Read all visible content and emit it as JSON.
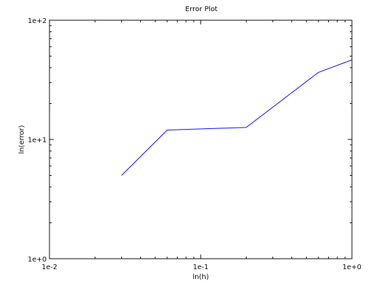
{
  "chart_data": {
    "type": "line",
    "title": "Error Plot",
    "xlabel": "ln(h)",
    "ylabel": "ln(error)",
    "x_scale": "log",
    "y_scale": "log",
    "xlim": [
      0.01,
      1
    ],
    "ylim": [
      1,
      100
    ],
    "x_ticks": [
      {
        "value": 0.01,
        "label": "1e-2"
      },
      {
        "value": 0.1,
        "label": "1e-1"
      },
      {
        "value": 1,
        "label": "1e+0"
      }
    ],
    "y_ticks": [
      {
        "value": 1,
        "label": "1e+0"
      },
      {
        "value": 10,
        "label": "1e+1"
      },
      {
        "value": 100,
        "label": "1e+2"
      }
    ],
    "grid": false,
    "series": [
      {
        "color": "#0000ff",
        "x": [
          0.03,
          0.06,
          0.2,
          0.6,
          1.0
        ],
        "y": [
          5.0,
          12.0,
          12.6,
          36.5,
          46.5
        ]
      }
    ]
  }
}
